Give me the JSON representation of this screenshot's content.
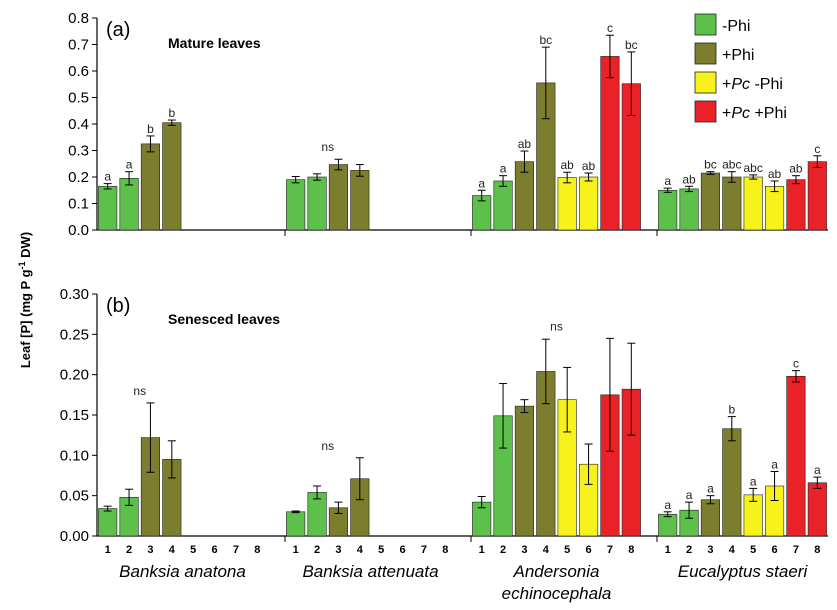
{
  "chart_data": {
    "type": "bar",
    "ylabel_main": "Leaf [P] (mg P g",
    "ylabel_sup": "-1",
    "ylabel_tail": " DW)",
    "colors": {
      "Phi_neg": "#5cc04a",
      "Phi_pos": "#7d7d2e",
      "Pc_Phi_neg": "#f7f21c",
      "Pc_Phi_pos": "#e82226"
    },
    "legend": [
      {
        "key": "Phi_neg",
        "prefix": "",
        "italic": "",
        "suffix": "-Phi"
      },
      {
        "key": "Phi_pos",
        "prefix": "",
        "italic": "",
        "suffix": "+Phi"
      },
      {
        "key": "Pc_Phi_neg",
        "prefix": "+",
        "italic": "Pc",
        "suffix": " -Phi"
      },
      {
        "key": "Pc_Phi_pos",
        "prefix": "+",
        "italic": "Pc",
        "suffix": " +Phi"
      }
    ],
    "legend_position": "top-right",
    "treatments": [
      "1",
      "2",
      "3",
      "4",
      "5",
      "6",
      "7",
      "8"
    ],
    "treatment_groups": [
      "Phi_neg",
      "Phi_neg",
      "Phi_pos",
      "Phi_pos",
      "Pc_Phi_neg",
      "Pc_Phi_neg",
      "Pc_Phi_pos",
      "Pc_Phi_pos"
    ],
    "species": [
      {
        "lines": [
          "Banksia anatona"
        ]
      },
      {
        "lines": [
          "Banksia attenuata"
        ]
      },
      {
        "lines": [
          "Andersonia",
          "echinocephala"
        ]
      },
      {
        "lines": [
          "Eucalyptus staeri"
        ]
      }
    ],
    "panels": [
      {
        "letter": "(a)",
        "title": "Mature leaves",
        "ylim": [
          0,
          0.8
        ],
        "yticks": [
          "0.0",
          "0.1",
          "0.2",
          "0.3",
          "0.4",
          "0.5",
          "0.6",
          "0.7",
          "0.8"
        ],
        "groups": [
          {
            "values": [
              0.165,
              0.195,
              0.325,
              0.405,
              null,
              null,
              null,
              null
            ],
            "errors": [
              0.01,
              0.025,
              0.03,
              0.01,
              null,
              null,
              null,
              null
            ],
            "labels": [
              "a",
              "a",
              "b",
              "b",
              "",
              "",
              "",
              ""
            ],
            "group_label": ""
          },
          {
            "values": [
              0.19,
              0.2,
              0.247,
              0.225,
              null,
              null,
              null,
              null
            ],
            "errors": [
              0.012,
              0.012,
              0.02,
              0.022,
              null,
              null,
              null,
              null
            ],
            "labels": [
              "",
              "",
              "",
              "",
              "",
              "",
              "",
              ""
            ],
            "group_label": "ns"
          },
          {
            "values": [
              0.13,
              0.185,
              0.258,
              0.555,
              0.198,
              0.2,
              0.655,
              0.552
            ],
            "errors": [
              0.02,
              0.02,
              0.04,
              0.135,
              0.02,
              0.015,
              0.08,
              0.12
            ],
            "labels": [
              "a",
              "a",
              "ab",
              "bc",
              "ab",
              "ab",
              "c",
              "bc"
            ],
            "group_label": ""
          },
          {
            "values": [
              0.15,
              0.155,
              0.215,
              0.2,
              0.2,
              0.165,
              0.19,
              0.258
            ],
            "errors": [
              0.008,
              0.01,
              0.005,
              0.02,
              0.008,
              0.02,
              0.015,
              0.022
            ],
            "labels": [
              "a",
              "ab",
              "bc",
              "abc",
              "abc",
              "ab",
              "ab",
              "c"
            ],
            "group_label": ""
          }
        ]
      },
      {
        "letter": "(b)",
        "title": "Senesced leaves",
        "ylim": [
          0,
          0.3
        ],
        "yticks": [
          "0.00",
          "0.05",
          "0.10",
          "0.15",
          "0.20",
          "0.25",
          "0.30"
        ],
        "groups": [
          {
            "values": [
              0.034,
              0.048,
              0.122,
              0.095,
              null,
              null,
              null,
              null
            ],
            "errors": [
              0.003,
              0.01,
              0.043,
              0.023,
              null,
              null,
              null,
              null
            ],
            "labels": [
              "",
              "",
              "",
              "",
              "",
              "",
              "",
              ""
            ],
            "group_label": "ns"
          },
          {
            "values": [
              0.03,
              0.054,
              0.035,
              0.071,
              null,
              null,
              null,
              null
            ],
            "errors": [
              0.001,
              0.008,
              0.007,
              0.026,
              null,
              null,
              null,
              null
            ],
            "labels": [
              "",
              "",
              "",
              "",
              "",
              "",
              "",
              ""
            ],
            "group_label": "ns"
          },
          {
            "values": [
              0.042,
              0.149,
              0.161,
              0.204,
              0.169,
              0.089,
              0.175,
              0.182
            ],
            "errors": [
              0.007,
              0.04,
              0.008,
              0.04,
              0.04,
              0.025,
              0.07,
              0.057
            ],
            "labels": [
              "",
              "",
              "",
              "",
              "",
              "",
              "",
              ""
            ],
            "group_label": "ns"
          },
          {
            "values": [
              0.027,
              0.032,
              0.045,
              0.133,
              0.051,
              0.062,
              0.198,
              0.066
            ],
            "errors": [
              0.003,
              0.01,
              0.005,
              0.015,
              0.008,
              0.018,
              0.007,
              0.007
            ],
            "labels": [
              "a",
              "a",
              "a",
              "b",
              "a",
              "a",
              "c",
              "a"
            ],
            "group_label": ""
          }
        ]
      }
    ]
  }
}
